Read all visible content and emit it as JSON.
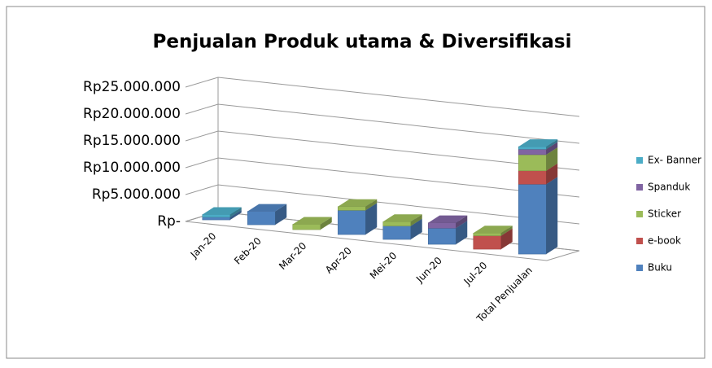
{
  "chart_data": {
    "type": "bar3d_stacked",
    "title": "Penjualan Produk utama & Diversifikasi",
    "categories": [
      "Jan-20",
      "Feb-20",
      "Mar-20",
      "Apr-20",
      "Mei-20",
      "Jun-20",
      "Jul-20",
      "Total Penjualan"
    ],
    "series": [
      {
        "name": "Buku",
        "color": "#4f81bd",
        "values": [
          500000,
          2500000,
          0,
          4500000,
          2500000,
          3000000,
          0,
          13000000
        ]
      },
      {
        "name": "e-book",
        "color": "#c0504d",
        "values": [
          0,
          0,
          0,
          0,
          0,
          0,
          2500000,
          2500000
        ]
      },
      {
        "name": "Sticker",
        "color": "#9bbb59",
        "values": [
          0,
          0,
          1000000,
          700000,
          800000,
          0,
          500000,
          3000000
        ]
      },
      {
        "name": "Spanduk",
        "color": "#8064a2",
        "values": [
          0,
          0,
          0,
          0,
          0,
          1000000,
          0,
          1000000
        ]
      },
      {
        "name": "Ex- Banner",
        "color": "#4bacc6",
        "values": [
          500000,
          0,
          0,
          0,
          0,
          0,
          0,
          500000
        ]
      }
    ],
    "ylim": [
      0,
      25000000
    ],
    "yticks": [
      {
        "value": 0,
        "label": "Rp-"
      },
      {
        "value": 5000000,
        "label": "Rp5.000.000"
      },
      {
        "value": 10000000,
        "label": "Rp10.000.000"
      },
      {
        "value": 15000000,
        "label": "Rp15.000.000"
      },
      {
        "value": 20000000,
        "label": "Rp20.000.000"
      },
      {
        "value": 25000000,
        "label": "Rp25.000.000"
      }
    ],
    "grid": true,
    "legend": "right"
  }
}
